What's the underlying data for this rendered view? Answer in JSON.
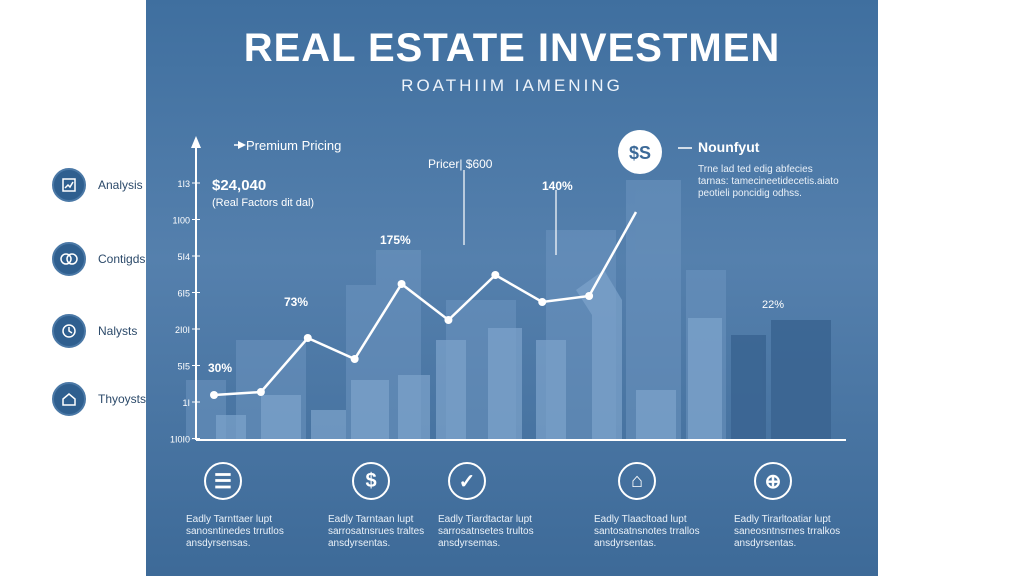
{
  "header": {
    "title": "REAL ESTATE INVESTMEN",
    "subtitle": "ROATHIIM IAMENING"
  },
  "sidebar": {
    "items": [
      {
        "label": "Analysis",
        "icon": "chart-document-icon"
      },
      {
        "label": "Contigds",
        "icon": "handshake-icon"
      },
      {
        "label": "Nalysts",
        "icon": "clock-icon"
      },
      {
        "label": "Thyoysts",
        "icon": "house-document-icon"
      }
    ]
  },
  "chart_data": {
    "type": "line",
    "y_tick_labels": [
      "1I3",
      "1I00",
      "5I4",
      "6I5",
      "2I0I",
      "5I5",
      "1I",
      "1I0I0"
    ],
    "x": [
      1,
      2,
      3,
      4,
      5,
      6,
      7,
      8,
      9,
      10
    ],
    "values": [
      15,
      16,
      34,
      27,
      52,
      40,
      55,
      46,
      48,
      76
    ],
    "ylim": [
      0,
      90
    ],
    "annotations": {
      "premium_pricing": "Premium Pricing",
      "amount": "$24,040",
      "amount_sub": "(Real Factors dit dal)",
      "price_label": "Pricer| $600",
      "pct_30": "30%",
      "pct_73": "73%",
      "pct_175": "175%",
      "pct_140": "140%",
      "pct_22": "22%",
      "dollar_badge": "$S",
      "nounfyut": "Nounfyut",
      "note_lines": [
        "Trne lad ted edig abfecies",
        "tarnas: tamecineetidecetis.aiato",
        "peotieli poncidig odhss."
      ]
    }
  },
  "features": [
    {
      "icon": "document-list-icon",
      "glyph": "☰",
      "lines": [
        "Eadly Tarnttaer lupt",
        "sanosntinedes trrutlos",
        "ansdyrsensas."
      ]
    },
    {
      "icon": "dollar-icon",
      "glyph": "$",
      "lines": [
        "Eadly Tarntaan lupt",
        "sarrosatnsrues traltes",
        "ansdyrsentas."
      ]
    },
    {
      "icon": "checkmark-icon",
      "glyph": "✓",
      "lines": [
        "Eadly Tiardtactar lupt",
        "sarrosatnsetes trultos",
        "ansdyrsemas."
      ]
    },
    {
      "icon": "home-icon",
      "glyph": "⌂",
      "lines": [
        "Eadly Tlaacltoad lupt",
        "santosatnsnotes trrallos",
        "ansdyrsentas."
      ]
    },
    {
      "icon": "globe-icon",
      "glyph": "⊕",
      "lines": [
        "Eadly Tirarltoatiar lupt",
        "saneosntnsrnes trralkos",
        "ansdyrsentas."
      ]
    }
  ]
}
